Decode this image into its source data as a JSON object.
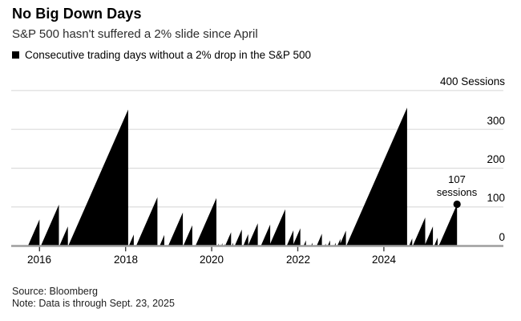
{
  "title": "No Big Down Days",
  "subtitle": "S&P 500 hasn't suffered a 2% slide since April",
  "legend": {
    "marker": "black-square-icon",
    "label": "Consecutive trading days without a 2% drop in the S&P 500"
  },
  "annotation": {
    "line1": "107",
    "line2": "sessions"
  },
  "footer": {
    "source": "Source: Bloomberg",
    "note": "Note: Data is through Sept. 23, 2025"
  },
  "colors": {
    "series": "#000000",
    "grid": "#dcdcdc",
    "axis": "#9e9e9e",
    "tick": "#3c3c3c",
    "text": "#000000",
    "background": "#ffffff"
  },
  "chart_data": {
    "type": "area",
    "title": "No Big Down Days",
    "subtitle": "S&P 500 hasn't suffered a 2% slide since April",
    "series_name": "Consecutive trading days without a 2% drop in the S&P 500",
    "unit": "sessions",
    "shape": "sawtooth",
    "grid": true,
    "legend_position": "top-left",
    "y_axis_side": "right",
    "ylim": [
      0,
      400
    ],
    "x_domain": [
      2015.34,
      2026.78
    ],
    "trading_days_per_year": 252,
    "yticks": [
      {
        "value": 0,
        "label": "0"
      },
      {
        "value": 100,
        "label": "100"
      },
      {
        "value": 200,
        "label": "200"
      },
      {
        "value": 300,
        "label": "300"
      },
      {
        "value": 400,
        "label": "400 Sessions"
      }
    ],
    "xticks": [
      {
        "value": 2016,
        "label": "2016"
      },
      {
        "value": 2018,
        "label": "2018"
      },
      {
        "value": 2020,
        "label": "2020"
      },
      {
        "value": 2022,
        "label": "2022"
      },
      {
        "value": 2024,
        "label": "2024"
      }
    ],
    "streaks": [
      {
        "end": 2016.0,
        "sessions": 68
      },
      {
        "end": 2016.45,
        "sessions": 106
      },
      {
        "end": 2016.66,
        "sessions": 50
      },
      {
        "end": 2018.06,
        "sessions": 351
      },
      {
        "end": 2018.19,
        "sessions": 29
      },
      {
        "end": 2018.74,
        "sessions": 125
      },
      {
        "end": 2018.9,
        "sessions": 28
      },
      {
        "end": 2019.33,
        "sessions": 86
      },
      {
        "end": 2019.55,
        "sessions": 53
      },
      {
        "end": 2020.11,
        "sessions": 123
      },
      {
        "end": 2020.16,
        "sessions": 6
      },
      {
        "end": 2020.2,
        "sessions": 4
      },
      {
        "end": 2020.25,
        "sessions": 7
      },
      {
        "end": 2020.31,
        "sessions": 5
      },
      {
        "end": 2020.45,
        "sessions": 35
      },
      {
        "end": 2020.5,
        "sessions": 8
      },
      {
        "end": 2020.7,
        "sessions": 42
      },
      {
        "end": 2020.85,
        "sessions": 30
      },
      {
        "end": 2021.07,
        "sessions": 58
      },
      {
        "end": 2021.36,
        "sessions": 55
      },
      {
        "end": 2021.71,
        "sessions": 94
      },
      {
        "end": 2021.9,
        "sessions": 40
      },
      {
        "end": 2022.06,
        "sessions": 45
      },
      {
        "end": 2022.19,
        "sessions": 14
      },
      {
        "end": 2022.34,
        "sessions": 8
      },
      {
        "end": 2022.56,
        "sessions": 31
      },
      {
        "end": 2022.65,
        "sessions": 6
      },
      {
        "end": 2022.75,
        "sessions": 14
      },
      {
        "end": 2022.88,
        "sessions": 8
      },
      {
        "end": 2022.99,
        "sessions": 18
      },
      {
        "end": 2023.12,
        "sessions": 39
      },
      {
        "end": 2024.54,
        "sessions": 356
      },
      {
        "end": 2024.66,
        "sessions": 19
      },
      {
        "end": 2024.96,
        "sessions": 73
      },
      {
        "end": 2025.14,
        "sessions": 50
      },
      {
        "end": 2025.25,
        "sessions": 21
      },
      {
        "end": 2025.29,
        "sessions": 5
      },
      {
        "end": 2025.7,
        "sessions": 107
      }
    ],
    "last_point": {
      "end": 2025.7,
      "sessions": 107,
      "label": "107 sessions",
      "marker": "dot"
    }
  }
}
